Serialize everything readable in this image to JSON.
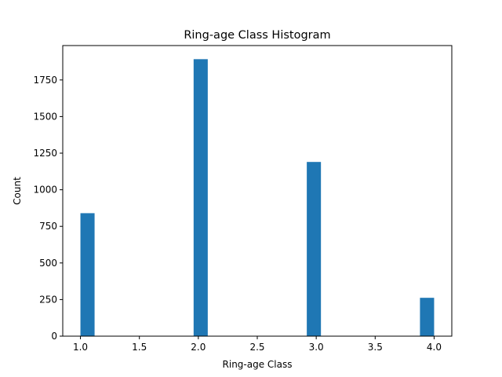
{
  "chart_data": {
    "type": "bar",
    "title": "Ring-age Class Histogram",
    "xlabel": "Ring-age Class",
    "ylabel": "Count",
    "xlim": [
      0.85,
      4.15
    ],
    "ylim": [
      0,
      1985
    ],
    "xticks": [
      1.0,
      1.5,
      2.0,
      2.5,
      3.0,
      3.5,
      4.0
    ],
    "xtick_labels": [
      "1.0",
      "1.5",
      "2.0",
      "2.5",
      "3.0",
      "3.5",
      "4.0"
    ],
    "yticks": [
      0,
      250,
      500,
      750,
      1000,
      1250,
      1500,
      1750
    ],
    "ytick_labels": [
      "0",
      "250",
      "500",
      "750",
      "1000",
      "1250",
      "1500",
      "1750"
    ],
    "bins": [
      {
        "x0": 1.0,
        "x1": 1.12,
        "count": 840
      },
      {
        "x0": 1.12,
        "x1": 1.24,
        "count": 0
      },
      {
        "x0": 1.24,
        "x1": 1.36,
        "count": 0
      },
      {
        "x0": 1.36,
        "x1": 1.48,
        "count": 0
      },
      {
        "x0": 1.48,
        "x1": 1.6,
        "count": 0
      },
      {
        "x0": 1.6,
        "x1": 1.72,
        "count": 0
      },
      {
        "x0": 1.72,
        "x1": 1.84,
        "count": 0
      },
      {
        "x0": 1.84,
        "x1": 1.96,
        "count": 0
      },
      {
        "x0": 1.96,
        "x1": 2.08,
        "count": 1892
      },
      {
        "x0": 2.08,
        "x1": 2.2,
        "count": 0
      },
      {
        "x0": 2.2,
        "x1": 2.32,
        "count": 0
      },
      {
        "x0": 2.32,
        "x1": 2.44,
        "count": 0
      },
      {
        "x0": 2.44,
        "x1": 2.56,
        "count": 0
      },
      {
        "x0": 2.56,
        "x1": 2.68,
        "count": 0
      },
      {
        "x0": 2.68,
        "x1": 2.8,
        "count": 0
      },
      {
        "x0": 2.8,
        "x1": 2.92,
        "count": 0
      },
      {
        "x0": 2.92,
        "x1": 3.04,
        "count": 1190
      },
      {
        "x0": 3.04,
        "x1": 3.16,
        "count": 0
      },
      {
        "x0": 3.16,
        "x1": 3.28,
        "count": 0
      },
      {
        "x0": 3.28,
        "x1": 3.4,
        "count": 0
      },
      {
        "x0": 3.4,
        "x1": 3.52,
        "count": 0
      },
      {
        "x0": 3.52,
        "x1": 3.64,
        "count": 0
      },
      {
        "x0": 3.64,
        "x1": 3.76,
        "count": 0
      },
      {
        "x0": 3.76,
        "x1": 3.88,
        "count": 0
      },
      {
        "x0": 3.88,
        "x1": 4.0,
        "count": 262
      }
    ],
    "bar_color": "#1f77b4",
    "grid": false,
    "legend": "none"
  }
}
